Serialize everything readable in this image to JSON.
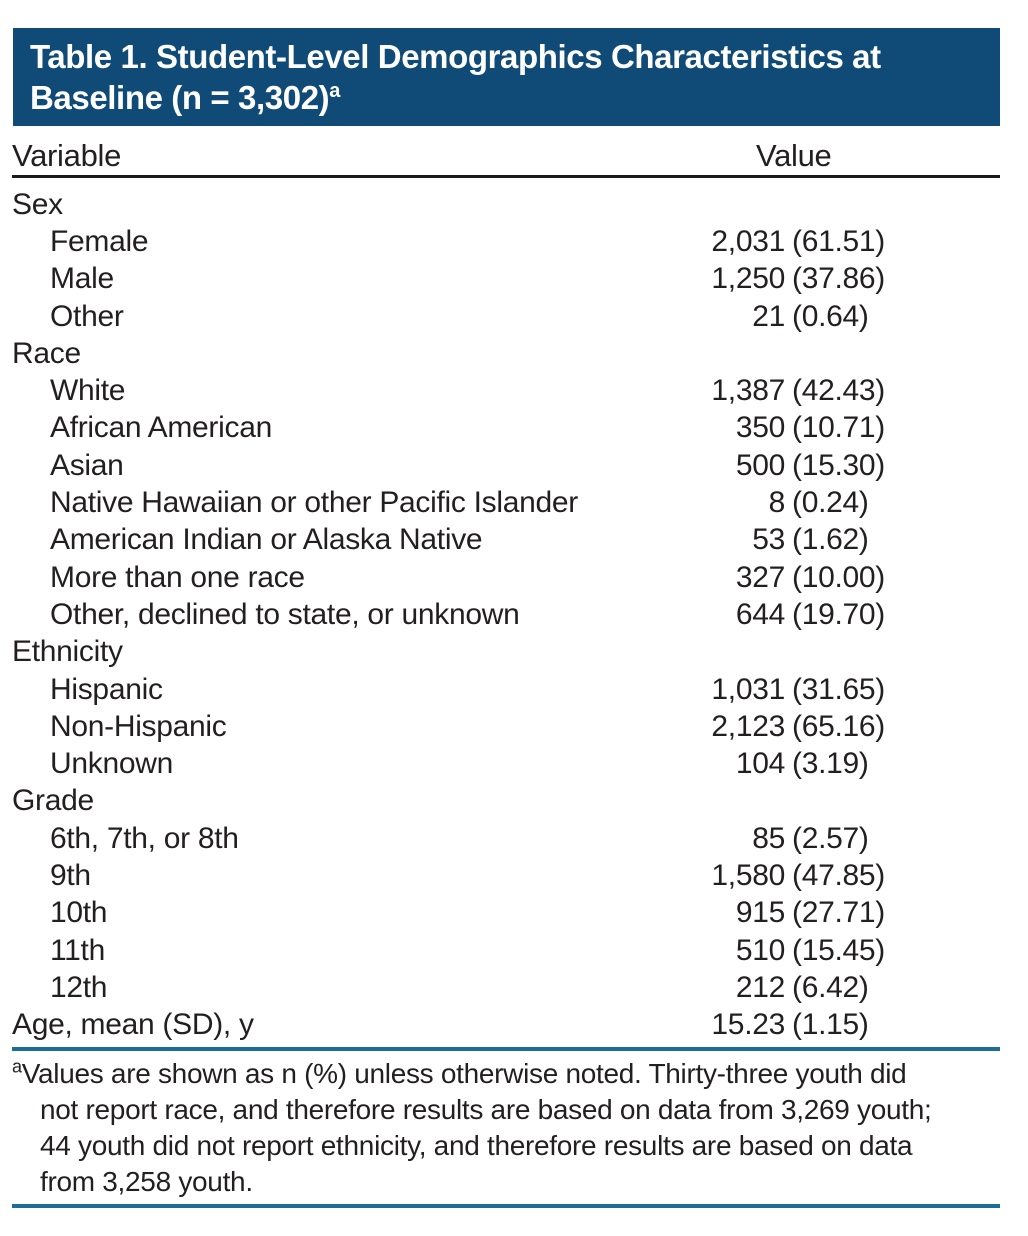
{
  "title": {
    "line1": "Table 1. Student-Level Demographics Characteristics at",
    "line2": "Baseline (n = 3,302)",
    "superscript": "a"
  },
  "columns": {
    "variable": "Variable",
    "value": "Value"
  },
  "rows": [
    {
      "label": "Sex",
      "indent": false,
      "n": "",
      "pct": ""
    },
    {
      "label": "Female",
      "indent": true,
      "n": "2,031",
      "pct": "(61.51)"
    },
    {
      "label": "Male",
      "indent": true,
      "n": "1,250",
      "pct": "(37.86)"
    },
    {
      "label": "Other",
      "indent": true,
      "n": "21",
      "pct": "(0.64)"
    },
    {
      "label": "Race",
      "indent": false,
      "n": "",
      "pct": ""
    },
    {
      "label": "White",
      "indent": true,
      "n": "1,387",
      "pct": "(42.43)"
    },
    {
      "label": "African American",
      "indent": true,
      "n": "350",
      "pct": "(10.71)"
    },
    {
      "label": "Asian",
      "indent": true,
      "n": "500",
      "pct": "(15.30)"
    },
    {
      "label": "Native Hawaiian or other Pacific Islander",
      "indent": true,
      "n": "8",
      "pct": "(0.24)"
    },
    {
      "label": "American Indian or Alaska Native",
      "indent": true,
      "n": "53",
      "pct": "(1.62)"
    },
    {
      "label": "More than one race",
      "indent": true,
      "n": "327",
      "pct": "(10.00)"
    },
    {
      "label": "Other, declined to state, or unknown",
      "indent": true,
      "n": "644",
      "pct": "(19.70)"
    },
    {
      "label": "Ethnicity",
      "indent": false,
      "n": "",
      "pct": ""
    },
    {
      "label": "Hispanic",
      "indent": true,
      "n": "1,031",
      "pct": "(31.65)"
    },
    {
      "label": "Non-Hispanic",
      "indent": true,
      "n": "2,123",
      "pct": "(65.16)"
    },
    {
      "label": "Unknown",
      "indent": true,
      "n": "104",
      "pct": "(3.19)"
    },
    {
      "label": "Grade",
      "indent": false,
      "n": "",
      "pct": ""
    },
    {
      "label": "6th, 7th, or 8th",
      "indent": true,
      "n": "85",
      "pct": "(2.57)"
    },
    {
      "label": "9th",
      "indent": true,
      "n": "1,580",
      "pct": "(47.85)"
    },
    {
      "label": "10th",
      "indent": true,
      "n": "915",
      "pct": "(27.71)"
    },
    {
      "label": "11th",
      "indent": true,
      "n": "510",
      "pct": "(15.45)"
    },
    {
      "label": "12th",
      "indent": true,
      "n": "212",
      "pct": "(6.42)"
    },
    {
      "label": "Age, mean (SD), y",
      "indent": false,
      "n": "15.23",
      "pct": "(1.15)"
    }
  ],
  "footnote": {
    "marker": "a",
    "lines": [
      "Values are shown as n (%) unless otherwise noted. Thirty-three youth did",
      "not report race, and therefore results are based on data from 3,269 youth;",
      "44 youth did not report ethnicity, and therefore results are based on data",
      "from 3,258 youth."
    ]
  },
  "colors": {
    "header_bar": "#104B77",
    "rule_blue": "#1C6C9C",
    "rule_black": "#1A1A1A",
    "text": "#231F20",
    "title_text": "#FFFFFF"
  }
}
